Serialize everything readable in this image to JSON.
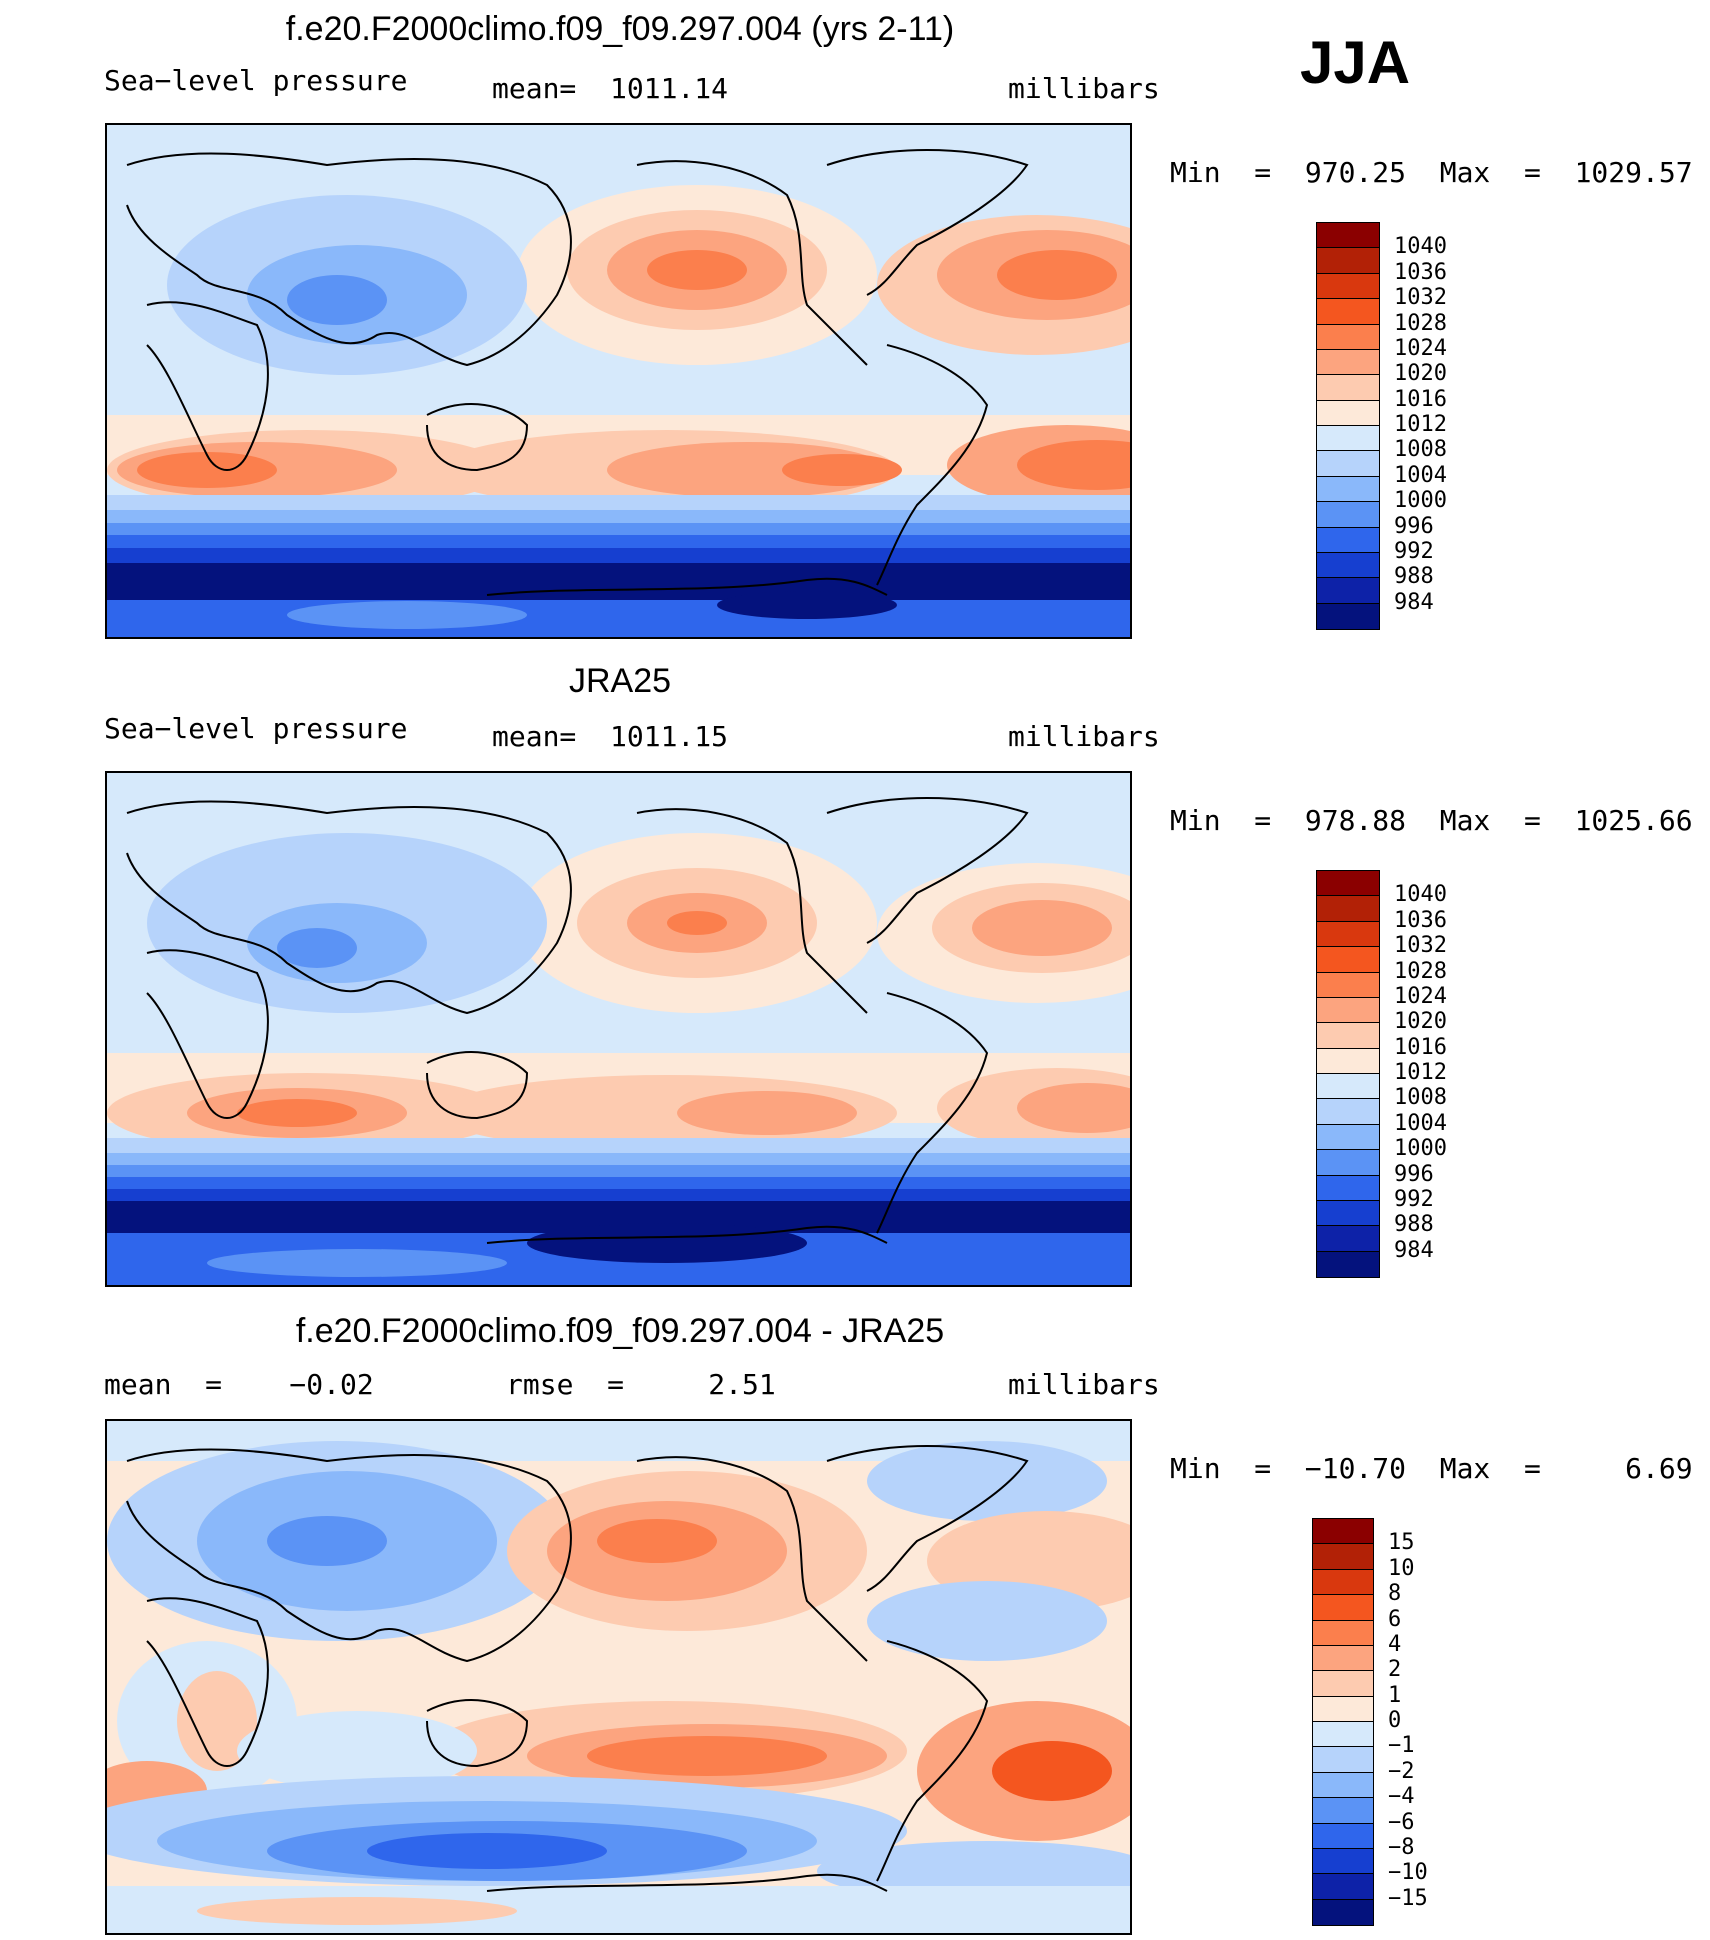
{
  "season": "JJA",
  "panels": [
    {
      "title": "f.e20.F2000climo.f09_f09.297.004 (yrs 2-11)",
      "left_label": "Sea−level pressure",
      "mid_label": "mean=  1011.14",
      "right_label": "millibars",
      "minmax": "Min  =  970.25  Max  =  1029.57",
      "colorbar": {
        "labels": [
          "1040",
          "1036",
          "1032",
          "1028",
          "1024",
          "1020",
          "1016",
          "1012",
          "1008",
          "1004",
          "1000",
          "996",
          "992",
          "988",
          "984"
        ],
        "colors": [
          "#8b0000",
          "#b22106",
          "#d9380e",
          "#f4561f",
          "#fb7f4d",
          "#fca47f",
          "#fdcbb0",
          "#fde9d9",
          "#d6e9fb",
          "#b6d3fb",
          "#8ab8fa",
          "#5b93f5",
          "#2f66ec",
          "#163fd0",
          "#0d22a8",
          "#04127d"
        ]
      }
    },
    {
      "title": "JRA25",
      "left_label": "Sea−level pressure",
      "mid_label": "mean=  1011.15",
      "right_label": "millibars",
      "minmax": "Min  =  978.88  Max  =  1025.66",
      "colorbar": {
        "labels": [
          "1040",
          "1036",
          "1032",
          "1028",
          "1024",
          "1020",
          "1016",
          "1012",
          "1008",
          "1004",
          "1000",
          "996",
          "992",
          "988",
          "984"
        ],
        "colors": [
          "#8b0000",
          "#b22106",
          "#d9380e",
          "#f4561f",
          "#fb7f4d",
          "#fca47f",
          "#fdcbb0",
          "#fde9d9",
          "#d6e9fb",
          "#b6d3fb",
          "#8ab8fa",
          "#5b93f5",
          "#2f66ec",
          "#163fd0",
          "#0d22a8",
          "#04127d"
        ]
      }
    },
    {
      "title": "f.e20.F2000climo.f09_f09.297.004 - JRA25",
      "left_label": "mean  =    −0.02",
      "mid_label": "rmse  =     2.51",
      "right_label": "millibars",
      "minmax": "Min  =  −10.70  Max  =     6.69",
      "colorbar": {
        "labels": [
          "15",
          "10",
          "8",
          "6",
          "4",
          "2",
          "1",
          "0",
          "−1",
          "−2",
          "−4",
          "−6",
          "−8",
          "−10",
          "−15"
        ],
        "colors": [
          "#8b0000",
          "#b22106",
          "#d9380e",
          "#f4561f",
          "#fb7f4d",
          "#fca47f",
          "#fdcbb0",
          "#fde9d9",
          "#d6e9fb",
          "#b6d3fb",
          "#8ab8fa",
          "#5b93f5",
          "#2f66ec",
          "#163fd0",
          "#0d22a8",
          "#04127d"
        ]
      }
    }
  ]
}
